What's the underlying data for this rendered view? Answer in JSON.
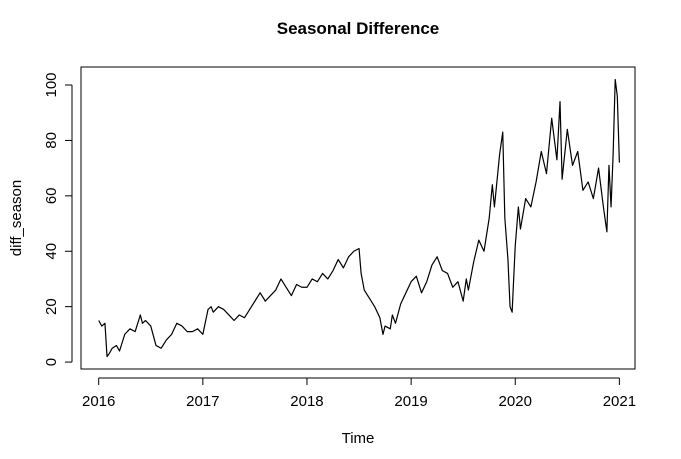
{
  "chart_data": {
    "type": "line",
    "title": "Seasonal Difference",
    "xlabel": "Time",
    "ylabel": "diff_season",
    "xlim": [
      2015.83,
      2021.15
    ],
    "ylim": [
      -2.5,
      106.5
    ],
    "x_ticks": [
      2016,
      2017,
      2018,
      2019,
      2020,
      2021
    ],
    "x_tick_labels": [
      "2016",
      "2017",
      "2018",
      "2019",
      "2020",
      "2021"
    ],
    "y_ticks": [
      0,
      20,
      40,
      60,
      80,
      100
    ],
    "y_tick_labels": [
      "0",
      "20",
      "40",
      "60",
      "80",
      "100"
    ],
    "grid": false,
    "legend": "none",
    "series": [
      {
        "color": "#000000",
        "x": [
          2016.0,
          2016.03,
          2016.06,
          2016.08,
          2016.1,
          2016.13,
          2016.17,
          2016.2,
          2016.25,
          2016.3,
          2016.35,
          2016.4,
          2016.42,
          2016.45,
          2016.5,
          2016.55,
          2016.6,
          2016.65,
          2016.7,
          2016.75,
          2016.8,
          2016.85,
          2016.9,
          2016.95,
          2017.0,
          2017.05,
          2017.08,
          2017.1,
          2017.15,
          2017.2,
          2017.25,
          2017.3,
          2017.35,
          2017.4,
          2017.45,
          2017.5,
          2017.55,
          2017.6,
          2017.65,
          2017.7,
          2017.75,
          2017.8,
          2017.85,
          2017.9,
          2017.95,
          2018.0,
          2018.05,
          2018.1,
          2018.15,
          2018.2,
          2018.25,
          2018.3,
          2018.35,
          2018.4,
          2018.45,
          2018.5,
          2018.52,
          2018.55,
          2018.6,
          2018.65,
          2018.7,
          2018.73,
          2018.75,
          2018.8,
          2018.82,
          2018.85,
          2018.9,
          2018.95,
          2019.0,
          2019.05,
          2019.1,
          2019.15,
          2019.2,
          2019.25,
          2019.3,
          2019.35,
          2019.4,
          2019.45,
          2019.5,
          2019.53,
          2019.55,
          2019.6,
          2019.65,
          2019.7,
          2019.75,
          2019.78,
          2019.8,
          2019.85,
          2019.88,
          2019.9,
          2019.93,
          2019.95,
          2019.97,
          2020.0,
          2020.03,
          2020.05,
          2020.1,
          2020.15,
          2020.2,
          2020.25,
          2020.3,
          2020.35,
          2020.4,
          2020.43,
          2020.45,
          2020.5,
          2020.55,
          2020.6,
          2020.65,
          2020.7,
          2020.75,
          2020.8,
          2020.85,
          2020.88,
          2020.9,
          2020.92,
          2020.94,
          2020.96,
          2020.98,
          2021.0
        ],
        "y": [
          15,
          13,
          14,
          2,
          3,
          5,
          6,
          4,
          10,
          12,
          11,
          17,
          14,
          15,
          13,
          6,
          5,
          8,
          10,
          14,
          13,
          11,
          11,
          12,
          10,
          19,
          20,
          18,
          20,
          19,
          17,
          15,
          17,
          16,
          19,
          22,
          25,
          22,
          24,
          26,
          30,
          27,
          24,
          28,
          27,
          27,
          30,
          29,
          32,
          30,
          33,
          37,
          34,
          38,
          40,
          41,
          32,
          26,
          23,
          20,
          16,
          10,
          13,
          12,
          17,
          14,
          21,
          25,
          29,
          31,
          25,
          29,
          35,
          38,
          33,
          32,
          27,
          29,
          22,
          30,
          26,
          36,
          44,
          40,
          52,
          64,
          56,
          75,
          83,
          52,
          37,
          20,
          18,
          42,
          56,
          48,
          59,
          56,
          65,
          76,
          68,
          88,
          73,
          94,
          66,
          84,
          71,
          76,
          62,
          65,
          59,
          70,
          55,
          47,
          71,
          56,
          75,
          102,
          96,
          72
        ]
      }
    ]
  }
}
